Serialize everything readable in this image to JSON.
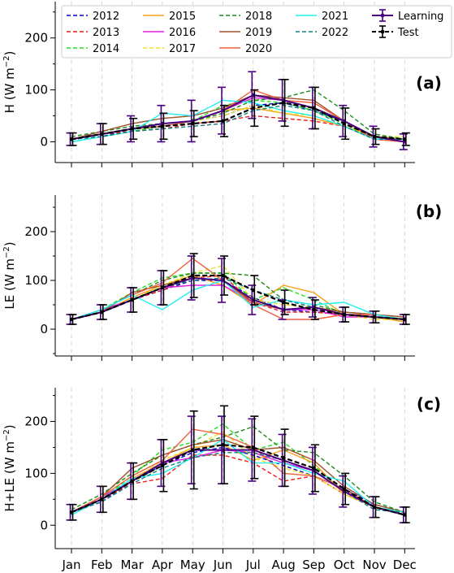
{
  "months": [
    "Jan",
    "Feb",
    "Mar",
    "Apr",
    "May",
    "Jun",
    "Jul",
    "Aug",
    "Sep",
    "Oct",
    "Nov",
    "Dec"
  ],
  "legend": {
    "years": [
      {
        "name": "2012",
        "color": "#0000cc",
        "dash": true
      },
      {
        "name": "2013",
        "color": "#e8201a",
        "dash": true
      },
      {
        "name": "2014",
        "color": "#22dd22",
        "dash": true
      },
      {
        "name": "2015",
        "color": "#f5a01a",
        "dash": false
      },
      {
        "name": "2016",
        "color": "#e020e0",
        "dash": false
      },
      {
        "name": "2017",
        "color": "#f0e020",
        "dash": true
      },
      {
        "name": "2018",
        "color": "#1a8c1a",
        "dash": true
      },
      {
        "name": "2019",
        "color": "#a0522d",
        "dash": false
      },
      {
        "name": "2020",
        "color": "#f06040",
        "dash": false
      },
      {
        "name": "2021",
        "color": "#20f0f0",
        "dash": false
      },
      {
        "name": "2022",
        "color": "#108080",
        "dash": true
      }
    ],
    "learning": {
      "name": "Learning",
      "color": "#4b0082"
    },
    "test": {
      "name": "Test",
      "color": "#000000"
    }
  },
  "chart_data": [
    {
      "type": "line",
      "panel_label": "(a)",
      "ylabel": "H (W m$^{-2}$)",
      "ylabel_main": "H (W m",
      "ylabel_sup": "−2",
      "ylabel_end": ")",
      "ylim": [
        -40,
        270
      ],
      "yticks": [
        0,
        100,
        200
      ],
      "series": [
        {
          "name": "2012",
          "values": [
            5,
            10,
            25,
            35,
            40,
            50,
            70,
            75,
            60,
            40,
            10,
            5
          ]
        },
        {
          "name": "2013",
          "values": [
            5,
            15,
            20,
            25,
            35,
            40,
            50,
            45,
            40,
            30,
            5,
            0
          ]
        },
        {
          "name": "2014",
          "values": [
            0,
            10,
            20,
            30,
            40,
            70,
            80,
            75,
            60,
            35,
            5,
            5
          ]
        },
        {
          "name": "2015",
          "values": [
            5,
            15,
            25,
            35,
            40,
            60,
            65,
            55,
            45,
            30,
            10,
            5
          ]
        },
        {
          "name": "2016",
          "values": [
            5,
            15,
            25,
            35,
            40,
            60,
            85,
            80,
            65,
            40,
            10,
            0
          ]
        },
        {
          "name": "2017",
          "values": [
            5,
            15,
            25,
            35,
            40,
            50,
            70,
            55,
            50,
            30,
            10,
            10
          ]
        },
        {
          "name": "2018",
          "values": [
            10,
            20,
            30,
            35,
            40,
            55,
            80,
            85,
            100,
            60,
            15,
            5
          ]
        },
        {
          "name": "2019",
          "values": [
            5,
            20,
            35,
            45,
            50,
            65,
            90,
            85,
            80,
            40,
            10,
            5
          ]
        },
        {
          "name": "2020",
          "values": [
            5,
            15,
            25,
            30,
            40,
            60,
            100,
            80,
            75,
            40,
            5,
            0
          ]
        },
        {
          "name": "2021",
          "values": [
            0,
            10,
            20,
            55,
            50,
            80,
            75,
            60,
            50,
            30,
            5,
            5
          ]
        },
        {
          "name": "2022",
          "values": [
            5,
            10,
            20,
            25,
            30,
            35,
            60,
            70,
            60,
            30,
            5,
            5
          ]
        }
      ],
      "learning": {
        "values": [
          5,
          15,
          25,
          35,
          40,
          60,
          90,
          80,
          65,
          40,
          10,
          0
        ],
        "err": [
          12,
          20,
          25,
          35,
          40,
          45,
          45,
          40,
          40,
          30,
          20,
          15
        ]
      },
      "test": {
        "values": [
          5,
          15,
          25,
          30,
          35,
          40,
          65,
          75,
          65,
          35,
          10,
          5
        ],
        "err": [
          12,
          20,
          20,
          25,
          25,
          30,
          35,
          45,
          40,
          30,
          15,
          12
        ]
      }
    },
    {
      "type": "line",
      "panel_label": "(b)",
      "ylabel": "LE (W m$^{-2}$)",
      "ylabel_main": "LE (W m",
      "ylabel_sup": "−2",
      "ylabel_end": ")",
      "ylim": [
        -55,
        275
      ],
      "yticks": [
        0,
        100,
        200
      ],
      "series": [
        {
          "name": "2012",
          "values": [
            20,
            35,
            60,
            80,
            100,
            100,
            65,
            40,
            35,
            30,
            25,
            20
          ]
        },
        {
          "name": "2013",
          "values": [
            20,
            35,
            60,
            80,
            105,
            110,
            55,
            35,
            35,
            30,
            25,
            20
          ]
        },
        {
          "name": "2014",
          "values": [
            20,
            40,
            75,
            105,
            115,
            115,
            60,
            85,
            60,
            30,
            25,
            20
          ]
        },
        {
          "name": "2015",
          "values": [
            20,
            35,
            65,
            90,
            110,
            90,
            50,
            90,
            75,
            30,
            25,
            15
          ]
        },
        {
          "name": "2016",
          "values": [
            20,
            40,
            60,
            85,
            90,
            90,
            55,
            40,
            40,
            25,
            25,
            20
          ]
        },
        {
          "name": "2017",
          "values": [
            20,
            35,
            60,
            90,
            115,
            130,
            60,
            50,
            45,
            30,
            20,
            20
          ]
        },
        {
          "name": "2018",
          "values": [
            20,
            40,
            70,
            100,
            115,
            115,
            110,
            60,
            50,
            35,
            30,
            20
          ]
        },
        {
          "name": "2019",
          "values": [
            20,
            35,
            75,
            90,
            105,
            100,
            55,
            40,
            45,
            35,
            30,
            25
          ]
        },
        {
          "name": "2020",
          "values": [
            20,
            40,
            70,
            95,
            145,
            100,
            50,
            20,
            20,
            30,
            30,
            20
          ]
        },
        {
          "name": "2021",
          "values": [
            20,
            40,
            70,
            40,
            80,
            100,
            45,
            60,
            50,
            55,
            30,
            20
          ]
        },
        {
          "name": "2022",
          "values": [
            20,
            35,
            60,
            85,
            100,
            105,
            80,
            60,
            45,
            30,
            25,
            20
          ]
        }
      ],
      "learning": {
        "values": [
          20,
          35,
          60,
          85,
          105,
          100,
          60,
          40,
          45,
          30,
          25,
          20
        ],
        "err": [
          10,
          15,
          25,
          35,
          45,
          45,
          30,
          20,
          20,
          15,
          12,
          10
        ]
      },
      "test": {
        "values": [
          20,
          35,
          60,
          85,
          110,
          110,
          80,
          55,
          40,
          30,
          25,
          20
        ],
        "err": [
          10,
          15,
          25,
          35,
          45,
          40,
          30,
          25,
          20,
          15,
          12,
          10
        ]
      }
    },
    {
      "type": "line",
      "panel_label": "(c)",
      "ylabel": "H+LE (W m$^{-2}$)",
      "ylabel_main": "H+LE (W m",
      "ylabel_sup": "−2",
      "ylabel_end": ")",
      "ylim": [
        -45,
        265
      ],
      "yticks": [
        0,
        100,
        200
      ],
      "series": [
        {
          "name": "2012",
          "values": [
            25,
            45,
            85,
            115,
            140,
            150,
            135,
            115,
            95,
            70,
            40,
            25
          ]
        },
        {
          "name": "2013",
          "values": [
            25,
            50,
            80,
            90,
            135,
            135,
            120,
            85,
            95,
            60,
            35,
            20
          ]
        },
        {
          "name": "2014",
          "values": [
            20,
            50,
            95,
            145,
            160,
            195,
            145,
            160,
            115,
            65,
            35,
            25
          ]
        },
        {
          "name": "2015",
          "values": [
            25,
            50,
            90,
            120,
            150,
            155,
            125,
            145,
            120,
            60,
            35,
            20
          ]
        },
        {
          "name": "2016",
          "values": [
            25,
            55,
            85,
            120,
            130,
            145,
            140,
            120,
            105,
            65,
            35,
            20
          ]
        },
        {
          "name": "2017",
          "values": [
            25,
            50,
            85,
            125,
            150,
            180,
            130,
            110,
            95,
            60,
            35,
            25
          ]
        },
        {
          "name": "2018",
          "values": [
            30,
            60,
            100,
            135,
            155,
            170,
            190,
            145,
            140,
            95,
            45,
            25
          ]
        },
        {
          "name": "2019",
          "values": [
            25,
            55,
            110,
            135,
            155,
            165,
            145,
            150,
            125,
            75,
            40,
            25
          ]
        },
        {
          "name": "2020",
          "values": [
            25,
            55,
            95,
            125,
            185,
            175,
            150,
            100,
            95,
            70,
            35,
            20
          ]
        },
        {
          "name": "2021",
          "values": [
            20,
            50,
            90,
            100,
            130,
            165,
            120,
            120,
            100,
            85,
            35,
            25
          ]
        },
        {
          "name": "2022",
          "values": [
            25,
            45,
            80,
            110,
            130,
            140,
            140,
            125,
            105,
            65,
            30,
            25
          ]
        }
      ],
      "learning": {
        "values": [
          25,
          50,
          85,
          120,
          145,
          145,
          145,
          125,
          105,
          65,
          35,
          20
        ],
        "err": [
          15,
          25,
          35,
          45,
          65,
          65,
          60,
          50,
          45,
          30,
          20,
          15
        ]
      },
      "test": {
        "values": [
          25,
          50,
          85,
          115,
          145,
          155,
          150,
          130,
          110,
          70,
          35,
          20
        ],
        "err": [
          15,
          25,
          35,
          50,
          75,
          75,
          60,
          55,
          45,
          30,
          20,
          15
        ]
      }
    }
  ]
}
